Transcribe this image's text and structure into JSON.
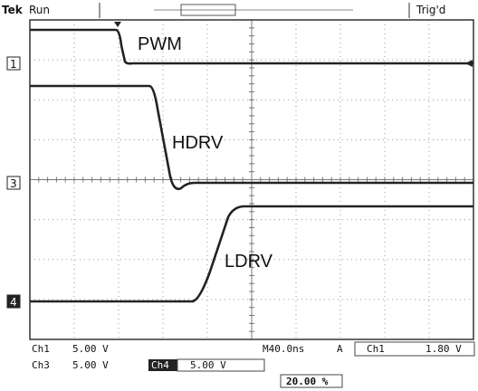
{
  "header": {
    "brand": "Tek",
    "status": "Run",
    "trigger": "Trig'd"
  },
  "traces": [
    {
      "marker": "1",
      "label": "PWM"
    },
    {
      "marker": "3",
      "label": "HDRV"
    },
    {
      "marker": "4",
      "label": "LDRV"
    }
  ],
  "readout": {
    "ch1_name": "Ch1",
    "ch1_scale": "5.00 V",
    "timebase": "M40.0ns",
    "trigger_mode": "A",
    "trigger_source": "Ch1",
    "trigger_level": "1.80 V",
    "ch3_name": "Ch3",
    "ch3_scale": "5.00 V",
    "ch4_name": "Ch4",
    "ch4_scale": "5.00 V",
    "trigger_position": "20.00 %"
  }
}
